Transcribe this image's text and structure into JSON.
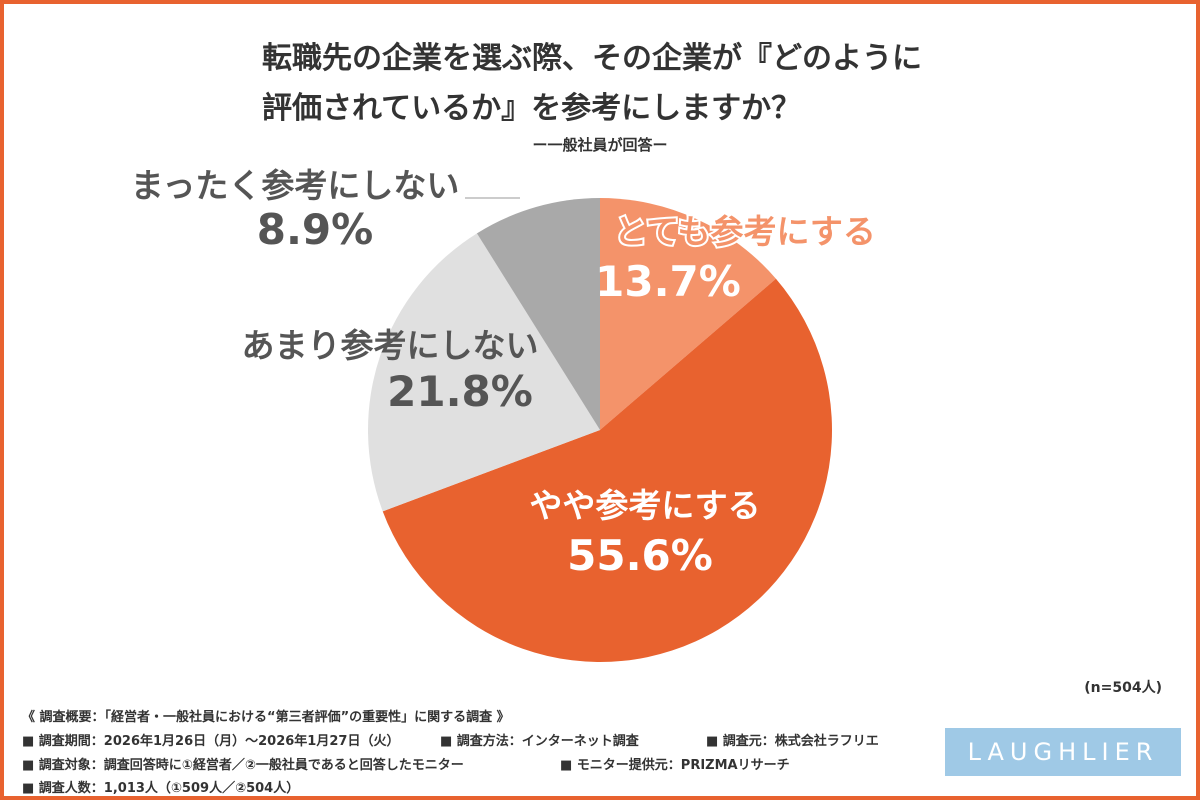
{
  "chart_data": {
    "type": "pie",
    "title": [
      "転職先の企業を選ぶ際、その企業が『どのように",
      "評価されているか』を参考にしますか？"
    ],
    "subtitle": "ー一般社員が回答ー",
    "categories": [
      "とても参考にする",
      "やや参考にする",
      "あまり参考にしない",
      "まったく参考にしない"
    ],
    "values": [
      13.7,
      55.6,
      21.8,
      8.9
    ],
    "value_labels": [
      "13.7%",
      "55.6%",
      "21.8%",
      "8.9%"
    ],
    "colors": [
      "#f4936a",
      "#e8622f",
      "#e0e0e0",
      "#a9a9a9"
    ],
    "note": "(n=504人)"
  },
  "footer": {
    "heading": "《 調査概要：「経営者・一般社員における“第三者評価”の重要性」に関する調査 》",
    "items": [
      "■ 調査期間：2026年1月26日（月）～2026年1月27日（火）",
      "■ 調査方法：インターネット調査",
      "■ 調査元：株式会社ラフリエ",
      "■ 調査対象：調査回答時に①経営者／②一般社員であると回答したモニター",
      "■ モニター提供元：PRIZMAリサーチ",
      "■ 調査人数：1,013人（①509人／②504人）"
    ]
  },
  "logo": "LAUGHLIER"
}
